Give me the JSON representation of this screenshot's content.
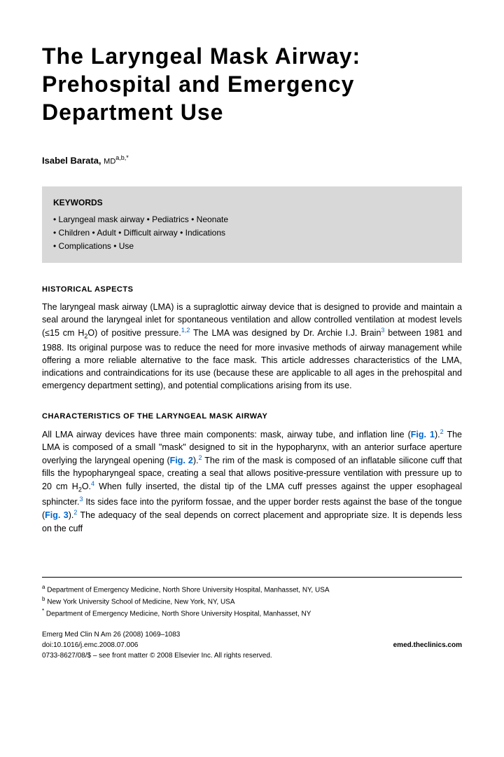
{
  "title": "The Laryngeal Mask Airway: Prehospital and Emergency Department Use",
  "author": {
    "name": "Isabel Barata,",
    "degree": "MD",
    "superscripts": "a,b,*"
  },
  "keywords": {
    "label": "KEYWORDS",
    "line1": "• Laryngeal mask airway • Pediatrics • Neonate",
    "line2": "• Children • Adult • Difficult airway • Indications",
    "line3": "• Complications • Use"
  },
  "sections": {
    "historical": {
      "heading": "HISTORICAL ASPECTS",
      "p1a": "The laryngeal mask airway (LMA) is a supraglottic airway device that is designed to provide and maintain a seal around the laryngeal inlet for spontaneous ventilation and allow controlled ventilation at modest levels (≤15 cm H",
      "p1b": "O) of positive pressure.",
      "p1c": " The LMA was designed by Dr. Archie I.J. Brain",
      "p1d": " between 1981 and 1988. Its original purpose was to reduce the need for more invasive methods of airway management while offering a more reliable alternative to the face mask. This article addresses characteristics of the LMA, indications and contraindications for its use (because these are applicable to all ages in the prehospital and emergency department setting), and potential complications arising from its use."
    },
    "characteristics": {
      "heading": "CHARACTERISTICS OF THE LARYNGEAL MASK AIRWAY",
      "p1a": "All LMA airway devices have three main components: mask, airway tube, and inflation line (",
      "fig1": "Fig. 1",
      "p1b": ").",
      "p1c": " The LMA is composed of a small \"mask\" designed to sit in the hypopharynx, with an anterior surface aperture overlying the laryngeal opening (",
      "fig2": "Fig. 2",
      "p1d": ").",
      "p1e": " The rim of the mask is composed of an inflatable silicone cuff that fills the hypopharyngeal space, creating a seal that allows positive-pressure ventilation with pressure up to 20 cm H",
      "p1f": "O.",
      "p1g": " When fully inserted, the distal tip of the LMA cuff presses against the upper esophageal sphincter.",
      "p1h": " Its sides face into the pyriform fossae, and the upper border rests against the base of the tongue (",
      "fig3": "Fig. 3",
      "p1i": ").",
      "p1j": " The adequacy of the seal depends on correct placement and appropriate size. It is depends less on the cuff"
    }
  },
  "refs": {
    "r12": "1,2",
    "r2": "2",
    "r3": "3",
    "r4": "4",
    "sub2": "2"
  },
  "footnotes": {
    "a": "Department of Emergency Medicine, North Shore University Hospital, Manhasset, NY, USA",
    "b": "New York University School of Medicine, New York, NY, USA",
    "star": "Department of Emergency Medicine, North Shore University Hospital, Manhasset, NY",
    "sup_a": "a",
    "sup_b": "b",
    "sup_star": "*"
  },
  "journal": {
    "citation": "Emerg Med Clin N Am 26 (2008) 1069–1083",
    "doi": "doi:10.1016/j.emc.2008.07.006",
    "site": "emed.theclinics.com",
    "copyright": "0733-8627/08/$ – see front matter © 2008 Elsevier Inc. All rights reserved."
  }
}
